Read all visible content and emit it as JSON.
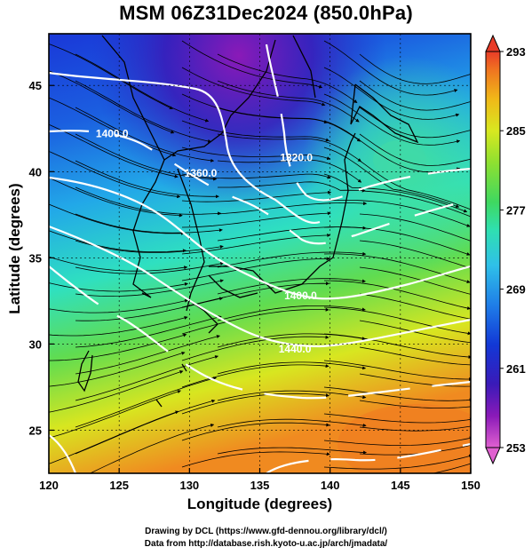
{
  "title": "MSM 06Z31Dec2024 (850.0hPa)",
  "xaxis": {
    "label": "Longitude (degrees)",
    "ticks": [
      120,
      125,
      130,
      135,
      140,
      145,
      150
    ],
    "range": [
      120,
      150
    ]
  },
  "yaxis": {
    "label": "Latitude  (degrees)",
    "ticks": [
      25,
      30,
      35,
      40,
      45
    ],
    "range": [
      22.5,
      48
    ]
  },
  "colorbar": {
    "ticks": [
      253,
      261,
      269,
      277,
      285,
      293
    ],
    "range": [
      253,
      293
    ],
    "colors": [
      "#e060d0",
      "#7a1cb0",
      "#3a1ab8",
      "#1238d6",
      "#1f7ee8",
      "#2fc0e8",
      "#2fe0b0",
      "#3fd860",
      "#8fe030",
      "#d8e820",
      "#f0b818",
      "#f07820",
      "#e83c28"
    ]
  },
  "contours": [
    {
      "label": "1400.0",
      "lon": 124.5,
      "lat": 42.0
    },
    {
      "label": "1360.0",
      "lon": 130.8,
      "lat": 39.7
    },
    {
      "label": "1320.0",
      "lon": 137.6,
      "lat": 40.6
    },
    {
      "label": "1400.0",
      "lon": 137.9,
      "lat": 32.6
    },
    {
      "label": "1440.0",
      "lon": 137.5,
      "lat": 29.5
    }
  ],
  "footer": {
    "line1": "Drawing by DCL (https://www.gfd-dennou.org/library/dcl/)",
    "line2": "Data from http://database.rish.kyoto-u.ac.jp/arch/jmadata/"
  }
}
